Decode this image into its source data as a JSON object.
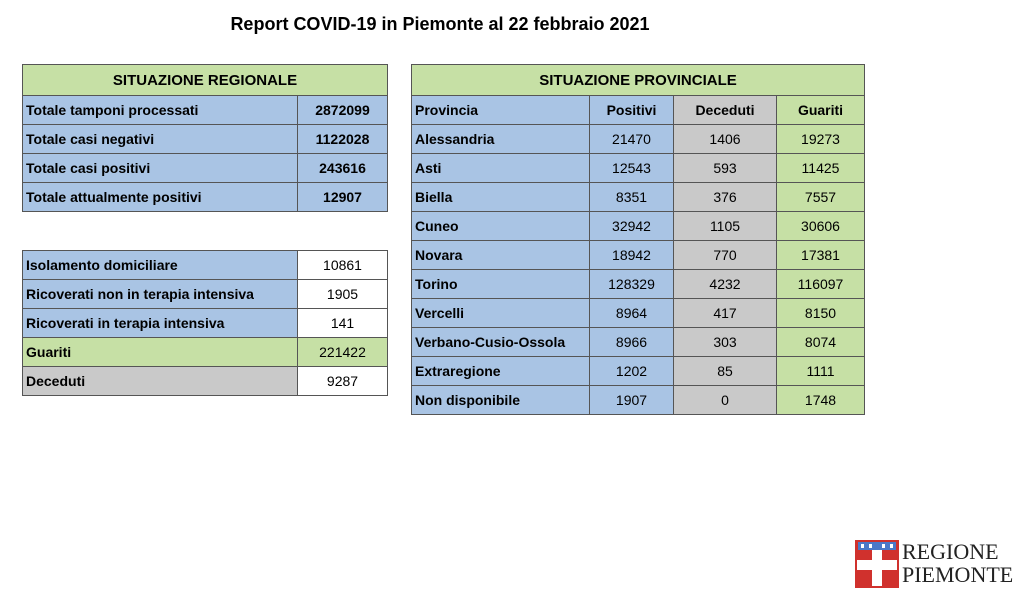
{
  "title": "Report COVID-19 in Piemonte al 22 febbraio 2021",
  "regional": {
    "header": "SITUAZIONE REGIONALE",
    "rows": [
      {
        "label": "Totale tamponi processati",
        "value": "2872099"
      },
      {
        "label": "Totale casi negativi",
        "value": "1122028"
      },
      {
        "label": "Totale casi positivi",
        "value": "243616"
      },
      {
        "label": "Totale attualmente positivi",
        "value": "12907"
      }
    ]
  },
  "details": {
    "rows": [
      {
        "label": "Isolamento domiciliare",
        "value": "10861"
      },
      {
        "label": "Ricoverati non in terapia intensiva",
        "value": "1905"
      },
      {
        "label": "Ricoverati in terapia intensiva",
        "value": "141"
      },
      {
        "label": "Guariti",
        "value": "221422"
      },
      {
        "label": "Deceduti",
        "value": "9287"
      }
    ]
  },
  "provincial": {
    "header": "SITUAZIONE PROVINCIALE",
    "columns": [
      "Provincia",
      "Positivi",
      "Deceduti",
      "Guariti"
    ],
    "rows": [
      {
        "name": "Alessandria",
        "positivi": "21470",
        "deceduti": "1406",
        "guariti": "19273"
      },
      {
        "name": "Asti",
        "positivi": "12543",
        "deceduti": "593",
        "guariti": "11425"
      },
      {
        "name": "Biella",
        "positivi": "8351",
        "deceduti": "376",
        "guariti": "7557"
      },
      {
        "name": "Cuneo",
        "positivi": "32942",
        "deceduti": "1105",
        "guariti": "30606"
      },
      {
        "name": "Novara",
        "positivi": "18942",
        "deceduti": "770",
        "guariti": "17381"
      },
      {
        "name": "Torino",
        "positivi": "128329",
        "deceduti": "4232",
        "guariti": "116097"
      },
      {
        "name": "Vercelli",
        "positivi": "8964",
        "deceduti": "417",
        "guariti": "8150"
      },
      {
        "name": "Verbano-Cusio-Ossola",
        "positivi": "8966",
        "deceduti": "303",
        "guariti": "8074"
      },
      {
        "name": "Extraregione",
        "positivi": "1202",
        "deceduti": "85",
        "guariti": "1111"
      },
      {
        "name": "Non disponibile",
        "positivi": "1907",
        "deceduti": "0",
        "guariti": "1748"
      }
    ]
  },
  "logo": {
    "line1": "REGIONE",
    "line2": "PIEMONTE"
  },
  "colors": {
    "green": "#c6e0a5",
    "blue": "#a9c4e4",
    "grey": "#c9c9c9",
    "logo_red": "#d0312d"
  }
}
